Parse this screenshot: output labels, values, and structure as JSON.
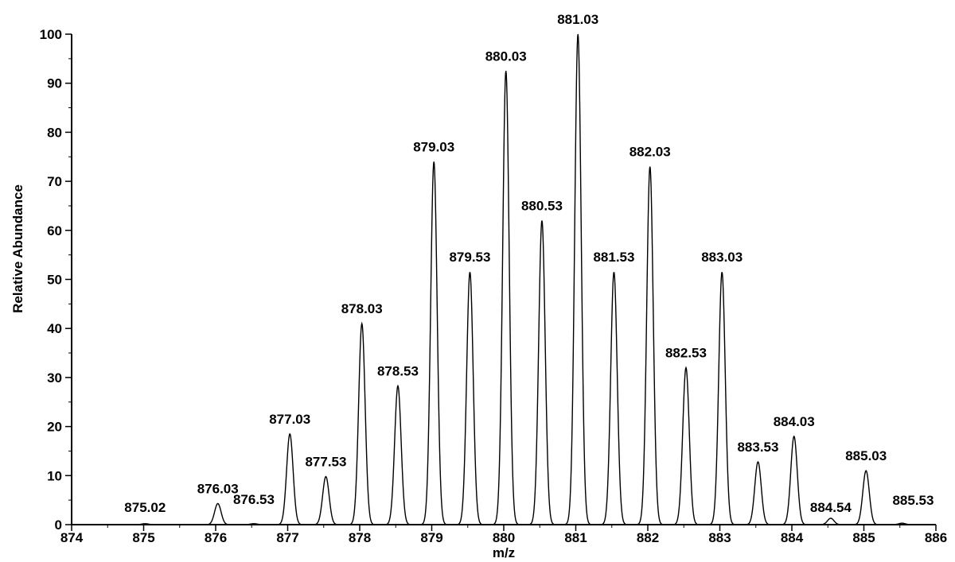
{
  "chart_data": {
    "type": "line",
    "title": "",
    "xlabel": "m/z",
    "ylabel": "Relative Abundance",
    "xlim": [
      874,
      886
    ],
    "ylim": [
      0,
      100
    ],
    "x_ticks": [
      "874",
      "875",
      "876",
      "877",
      "878",
      "879",
      "880",
      "881",
      "882",
      "883",
      "884",
      "885",
      "886"
    ],
    "y_ticks": [
      "0",
      "10",
      "20",
      "30",
      "40",
      "50",
      "60",
      "70",
      "80",
      "90",
      "100"
    ],
    "grid": false,
    "legend": "none",
    "line_color": "#000000",
    "peaks": [
      {
        "mz": 875.02,
        "abundance": 0.2,
        "label": "875.02"
      },
      {
        "mz": 876.03,
        "abundance": 4.3,
        "label": "876.03"
      },
      {
        "mz": 876.53,
        "abundance": 0.2,
        "label": "876.53"
      },
      {
        "mz": 877.03,
        "abundance": 18.5,
        "label": "877.03"
      },
      {
        "mz": 877.53,
        "abundance": 9.8,
        "label": "877.53"
      },
      {
        "mz": 878.03,
        "abundance": 41.0,
        "label": "878.03"
      },
      {
        "mz": 878.53,
        "abundance": 28.3,
        "label": "878.53"
      },
      {
        "mz": 879.03,
        "abundance": 74.0,
        "label": "879.03"
      },
      {
        "mz": 879.53,
        "abundance": 51.5,
        "label": "879.53"
      },
      {
        "mz": 880.03,
        "abundance": 92.5,
        "label": "880.03"
      },
      {
        "mz": 880.53,
        "abundance": 62.0,
        "label": "880.53"
      },
      {
        "mz": 881.03,
        "abundance": 100.0,
        "label": "881.03"
      },
      {
        "mz": 881.53,
        "abundance": 51.5,
        "label": "881.53"
      },
      {
        "mz": 882.03,
        "abundance": 73.0,
        "label": "882.03"
      },
      {
        "mz": 882.53,
        "abundance": 32.0,
        "label": "882.53"
      },
      {
        "mz": 883.03,
        "abundance": 51.5,
        "label": "883.03"
      },
      {
        "mz": 883.53,
        "abundance": 12.8,
        "label": "883.53"
      },
      {
        "mz": 884.03,
        "abundance": 18.0,
        "label": "884.03"
      },
      {
        "mz": 884.54,
        "abundance": 1.3,
        "label": "884.54"
      },
      {
        "mz": 885.03,
        "abundance": 11.0,
        "label": "885.03"
      },
      {
        "mz": 885.53,
        "abundance": 0.3,
        "label": "885.53"
      }
    ]
  }
}
